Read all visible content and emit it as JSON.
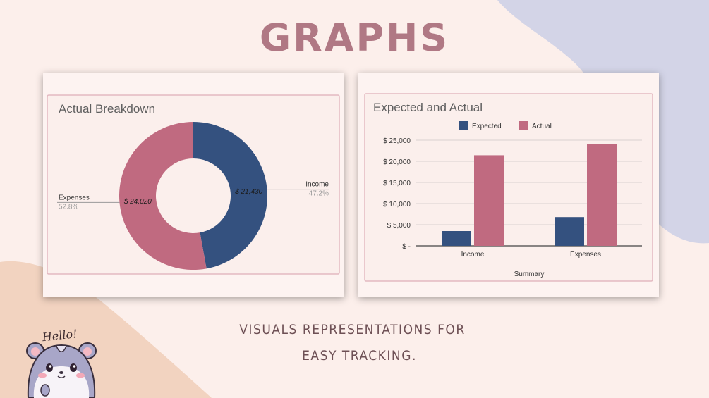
{
  "page": {
    "title": "GRAPHS",
    "caption_line1": "VISUALS REPRESENTATIONS FOR",
    "caption_line2": "EASY TRACKING.",
    "hamster_text": "Hello!"
  },
  "colors": {
    "background": "#fcefeb",
    "blob_top_right": "#d3d4e7",
    "blob_bottom_left": "#f2d3c0",
    "title": "#b07884",
    "income": "#34517f",
    "expenses": "#c06a80"
  },
  "chart_data": [
    {
      "type": "pie",
      "title": "Actual Breakdown",
      "donut": true,
      "slices": [
        {
          "label": "Income",
          "value": 21430,
          "value_label": "$ 21,430",
          "percent": "47.2%"
        },
        {
          "label": "Expenses",
          "value": 24020,
          "value_label": "$ 24,020",
          "percent": "52.8%"
        }
      ]
    },
    {
      "type": "bar",
      "title": "Expected and Actual",
      "categories": [
        "Income",
        "Expenses"
      ],
      "series": [
        {
          "name": "Expected",
          "values": [
            3500,
            6800
          ]
        },
        {
          "name": "Actual",
          "values": [
            21430,
            24020
          ]
        }
      ],
      "xlabel": "Summary",
      "ylabel": "",
      "ylim": [
        0,
        25000
      ],
      "yticks": [
        0,
        5000,
        10000,
        15000,
        20000,
        25000
      ],
      "ytick_labels": [
        "$ -",
        "$ 5,000",
        "$ 10,000",
        "$ 15,000",
        "$ 20,000",
        "$ 25,000"
      ],
      "legend_position": "top",
      "grid": true
    }
  ]
}
